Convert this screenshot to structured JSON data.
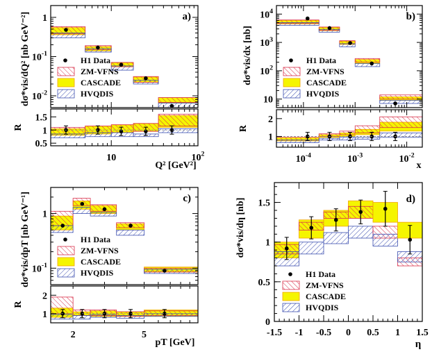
{
  "legend": {
    "h1": "H1 Data",
    "zm": "ZM-VFNS",
    "cascade": "CASCADE",
    "hvqdis": "HVQDIS"
  },
  "colors": {
    "zm": "#d9304a",
    "cascade": "#f5f500",
    "hvqdis": "#3c4fb0",
    "cascade_edge": "#f2a400"
  },
  "chart_data": [
    {
      "type": "line",
      "panel": "a)",
      "ylabel_top": "dσ*vis/dQ² [nb GeV⁻²]",
      "xlabel": "Q² [GeV²]",
      "ylabel_ratio": "R",
      "xscale": "log",
      "yscale": "log",
      "xlim": [
        2,
        100
      ],
      "ylim": [
        0.005,
        2
      ],
      "ratio_ylim": [
        0.4,
        1.8
      ],
      "top_tick_labels": [
        "1",
        "10⁻¹",
        "10⁻²"
      ],
      "x_tick_labels": [
        "10",
        "10²"
      ],
      "ratio_tick_labels": [
        "0.5",
        "1",
        "1.5"
      ],
      "bins": [
        [
          2,
          5
        ],
        [
          5,
          10
        ],
        [
          10,
          18
        ],
        [
          18,
          35
        ],
        [
          35,
          100
        ]
      ],
      "h1": [
        0.48,
        0.17,
        0.062,
        0.028,
        0.0055
      ],
      "h1_x": [
        3,
        7,
        13,
        25,
        50
      ],
      "cascade": [
        [
          0.36,
          0.55
        ],
        [
          0.14,
          0.18
        ],
        [
          0.055,
          0.07
        ],
        [
          0.022,
          0.03
        ],
        [
          0.0065,
          0.009
        ]
      ],
      "zm": [
        [
          0.38,
          0.58
        ],
        [
          0.15,
          0.19
        ],
        [
          0.055,
          0.071
        ],
        [
          0.022,
          0.031
        ],
        [
          0.0068,
          0.009
        ]
      ],
      "hvqdis": [
        [
          0.3,
          0.4
        ],
        [
          0.13,
          0.16
        ],
        [
          0.045,
          0.058
        ],
        [
          0.02,
          0.025
        ],
        [
          0.005,
          0.0065
        ]
      ],
      "ratio": {
        "h1": [
          1.0,
          1.0,
          0.95,
          0.95,
          1.0
        ],
        "cascade": [
          [
            0.8,
            1.05
          ],
          [
            0.85,
            1.15
          ],
          [
            0.9,
            1.2
          ],
          [
            0.95,
            1.25
          ],
          [
            1.1,
            1.55
          ]
        ],
        "zm": [
          [
            0.85,
            1.1
          ],
          [
            0.9,
            1.15
          ],
          [
            0.9,
            1.2
          ],
          [
            0.95,
            1.25
          ],
          [
            1.15,
            1.6
          ]
        ],
        "hvqdis": [
          [
            0.7,
            0.85
          ],
          [
            0.75,
            0.9
          ],
          [
            0.75,
            0.9
          ],
          [
            0.75,
            0.85
          ],
          [
            0.9,
            1.05
          ]
        ]
      }
    },
    {
      "type": "line",
      "panel": "b)",
      "ylabel_top": "dσ*vis/dx [nb]",
      "xlabel": "x",
      "ylabel_ratio": "R",
      "xscale": "log",
      "yscale": "log",
      "xlim": [
        3e-05,
        0.02
      ],
      "ylim": [
        5,
        20000
      ],
      "ratio_ylim": [
        0.4,
        2.5
      ],
      "top_tick_labels": [
        "10⁴",
        "10³",
        "10²",
        "10"
      ],
      "x_tick_labels": [
        "10⁻⁴",
        "10⁻³",
        "10⁻²"
      ],
      "ratio_tick_labels": [
        "1",
        "2"
      ],
      "bins": [
        [
          3e-05,
          0.0002
        ],
        [
          0.0002,
          0.0005
        ],
        [
          0.0005,
          0.001
        ],
        [
          0.001,
          0.003
        ],
        [
          0.003,
          0.02
        ]
      ],
      "h1": [
        7000,
        3200,
        950,
        180,
        7
      ],
      "h1_x": [
        0.00012,
        0.00032,
        0.0008,
        0.0021,
        0.006
      ],
      "cascade": [
        [
          4500,
          6000
        ],
        [
          2600,
          3400
        ],
        [
          850,
          1100
        ],
        [
          180,
          250
        ],
        [
          9,
          12
        ]
      ],
      "zm": [
        [
          4700,
          6200
        ],
        [
          2700,
          3500
        ],
        [
          900,
          1150
        ],
        [
          200,
          270
        ],
        [
          10,
          14
        ]
      ],
      "hvqdis": [
        [
          4000,
          5000
        ],
        [
          2300,
          2900
        ],
        [
          700,
          900
        ],
        [
          140,
          180
        ],
        [
          7,
          9
        ]
      ],
      "ratio": {
        "h1": [
          1.0,
          1.0,
          1.0,
          1.0,
          1.0
        ],
        "cascade": [
          [
            0.75,
            0.95
          ],
          [
            0.95,
            1.1
          ],
          [
            1.0,
            1.2
          ],
          [
            1.1,
            1.4
          ],
          [
            1.3,
            1.8
          ]
        ],
        "zm": [
          [
            0.8,
            0.95
          ],
          [
            1.0,
            1.15
          ],
          [
            1.1,
            1.3
          ],
          [
            1.2,
            1.6
          ],
          [
            1.5,
            2.1
          ]
        ],
        "hvqdis": [
          [
            0.65,
            0.8
          ],
          [
            0.8,
            0.9
          ],
          [
            0.8,
            0.95
          ],
          [
            0.85,
            0.95
          ],
          [
            0.95,
            1.2
          ]
        ]
      }
    },
    {
      "type": "line",
      "panel": "c)",
      "ylabel_top": "dσ*vis/dpT [nb GeV⁻¹]",
      "xlabel": "pT [GeV]",
      "ylabel_ratio": "R",
      "xscale": "log",
      "yscale": "log",
      "xlim": [
        1.5,
        10
      ],
      "ylim": [
        0.05,
        3
      ],
      "ratio_ylim": [
        0.5,
        2.5
      ],
      "top_tick_labels": [
        "1",
        "10⁻¹"
      ],
      "x_tick_labels": [
        "2",
        "5"
      ],
      "ratio_tick_labels": [
        "1",
        "2"
      ],
      "bins": [
        [
          1.5,
          2.0
        ],
        [
          2.0,
          2.5
        ],
        [
          2.5,
          3.5
        ],
        [
          3.5,
          5.0
        ],
        [
          5.0,
          10
        ]
      ],
      "h1": [
        0.6,
        1.5,
        1.2,
        0.6,
        0.09
      ],
      "h1_x": [
        1.75,
        2.25,
        3.0,
        4.2,
        6.5
      ],
      "cascade": [
        [
          0.5,
          0.9
        ],
        [
          1.2,
          1.7
        ],
        [
          1.0,
          1.4
        ],
        [
          0.5,
          0.65
        ],
        [
          0.085,
          0.105
        ]
      ],
      "zm": [
        [
          0.6,
          1.1
        ],
        [
          1.4,
          1.9
        ],
        [
          1.1,
          1.45
        ],
        [
          0.55,
          0.68
        ],
        [
          0.085,
          0.1
        ]
      ],
      "hvqdis": [
        [
          0.45,
          0.6
        ],
        [
          1.0,
          1.3
        ],
        [
          0.9,
          1.05
        ],
        [
          0.4,
          0.5
        ],
        [
          0.08,
          0.095
        ]
      ],
      "ratio": {
        "h1": [
          1.0,
          1.0,
          1.0,
          1.0,
          1.0
        ],
        "cascade": [
          [
            0.8,
            1.3
          ],
          [
            0.9,
            1.1
          ],
          [
            0.85,
            1.15
          ],
          [
            0.85,
            1.1
          ],
          [
            0.85,
            1.2
          ]
        ],
        "zm": [
          [
            1.0,
            1.9
          ],
          [
            0.9,
            1.2
          ],
          [
            0.9,
            1.2
          ],
          [
            0.85,
            1.1
          ],
          [
            0.9,
            1.15
          ]
        ],
        "hvqdis": [
          [
            0.7,
            0.95
          ],
          [
            0.7,
            0.9
          ],
          [
            0.8,
            0.95
          ],
          [
            0.75,
            0.9
          ],
          [
            0.85,
            1.0
          ]
        ]
      }
    },
    {
      "type": "line",
      "panel": "d)",
      "ylabel_top": "dσ*vis/dη [nb]",
      "xlabel": "η",
      "xscale": "linear",
      "yscale": "linear",
      "xlim": [
        -1.5,
        1.5
      ],
      "ylim": [
        0,
        1.75
      ],
      "y_tick_labels": [
        "0",
        "0.5",
        "1",
        "1.5"
      ],
      "x_tick_labels": [
        "-1.5",
        "-1",
        "-0.5",
        "0",
        "0.5",
        "1",
        "1.5"
      ],
      "bins": [
        [
          -1.5,
          -1.0
        ],
        [
          -1.0,
          -0.5
        ],
        [
          -0.5,
          0.0
        ],
        [
          0.0,
          0.5
        ],
        [
          0.5,
          1.0
        ],
        [
          1.0,
          1.5
        ]
      ],
      "h1": [
        0.92,
        1.18,
        1.28,
        1.38,
        1.42,
        1.03
      ],
      "h1_err": [
        0.14,
        0.14,
        0.14,
        0.15,
        0.22,
        0.18
      ],
      "h1_x": [
        -1.25,
        -0.75,
        -0.25,
        0.25,
        0.75,
        1.25
      ],
      "cascade": [
        [
          0.8,
          1.0
        ],
        [
          1.05,
          1.28
        ],
        [
          1.2,
          1.4
        ],
        [
          1.3,
          1.52
        ],
        [
          1.25,
          1.5
        ],
        [
          1.05,
          1.25
        ]
      ],
      "zm": [
        [
          0.85,
          0.97
        ],
        [
          1.15,
          1.25
        ],
        [
          1.3,
          1.38
        ],
        [
          1.3,
          1.45
        ],
        [
          1.05,
          1.2
        ],
        [
          0.7,
          0.8
        ]
      ],
      "hvqdis": [
        [
          0.7,
          0.88
        ],
        [
          0.85,
          1.0
        ],
        [
          0.98,
          1.12
        ],
        [
          1.05,
          1.2
        ],
        [
          0.95,
          1.1
        ],
        [
          0.75,
          0.88
        ]
      ]
    }
  ]
}
